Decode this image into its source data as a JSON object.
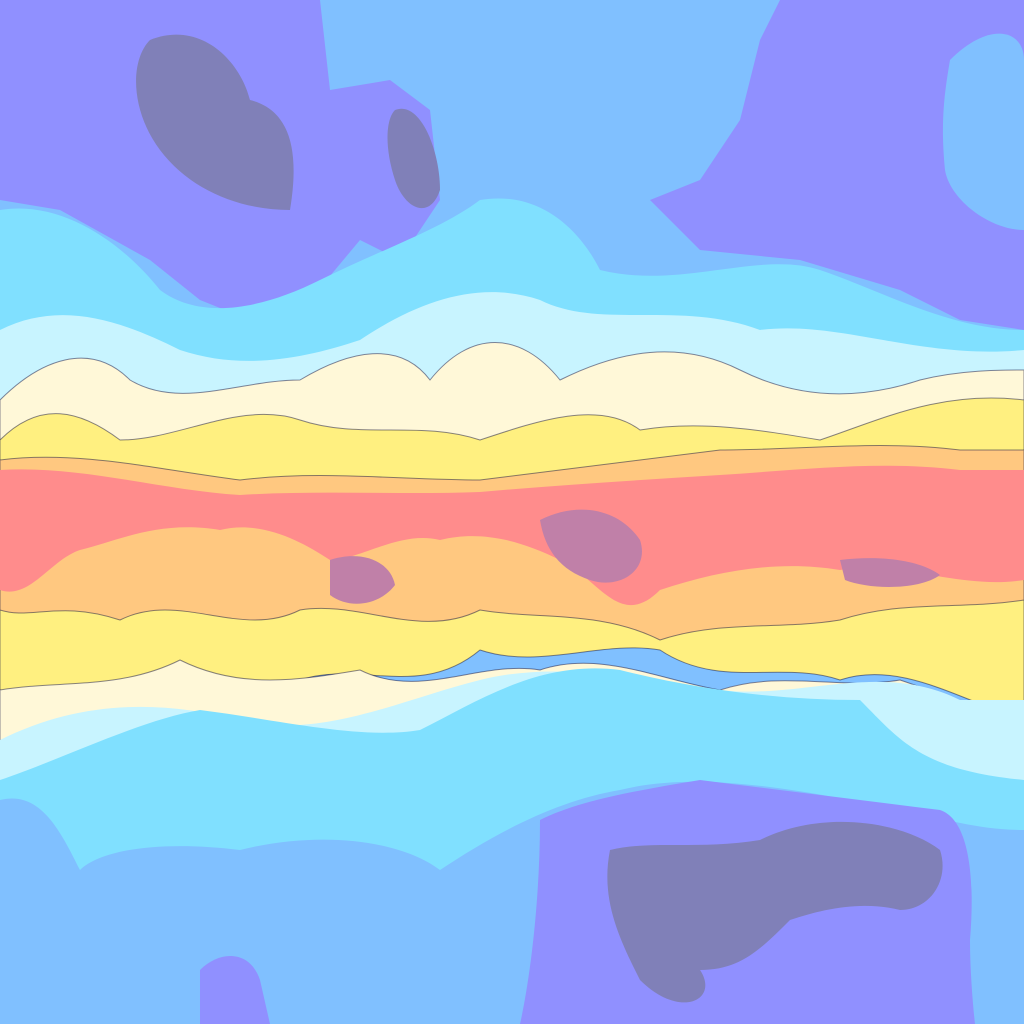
{
  "palette": {
    "very_cold": "#8080b8",
    "cold": "#9090ff",
    "cool": "#80c0ff",
    "mild_cool": "#80e0ff",
    "pale": "#c8f4ff",
    "neutral": "#fff8d8",
    "warm": "#fff080",
    "hot": "#ffc880",
    "very_hot": "#ff8c8c",
    "extreme": "#c080a8",
    "contour": "#101040"
  }
}
